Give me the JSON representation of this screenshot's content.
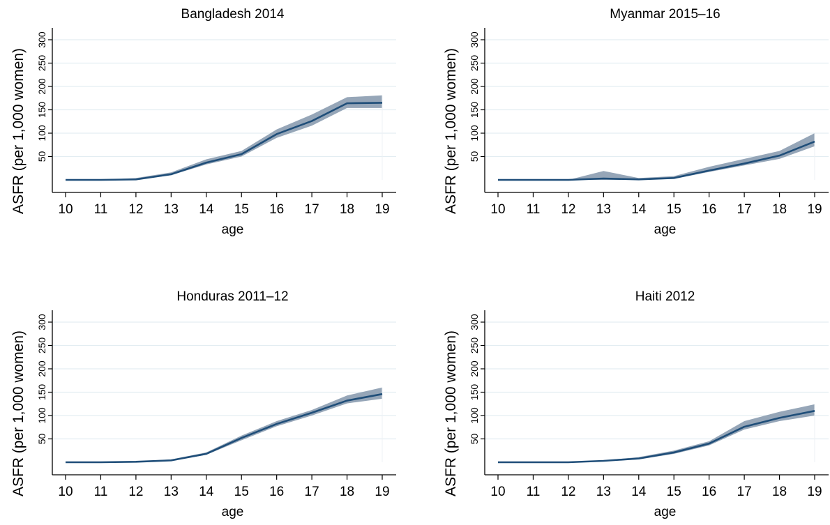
{
  "colors": {
    "line": "#1f4e79",
    "band": "#8497ac",
    "grid": "#e3edf2",
    "axis": "#000000"
  },
  "chart_data": [
    {
      "type": "line",
      "title": "Bangladesh 2014",
      "xlabel": "age",
      "ylabel": "ASFR (per 1,000 women)",
      "ylim": [
        0,
        330
      ],
      "yticks": [
        50,
        100,
        150,
        200,
        250,
        300
      ],
      "x": [
        10,
        11,
        12,
        13,
        14,
        15,
        16,
        17,
        18,
        19
      ],
      "series": [
        {
          "values": [
            0,
            0,
            1,
            12,
            37,
            55,
            98,
            126,
            164,
            165
          ]
        }
      ],
      "band_lower": [
        0,
        0,
        0,
        10,
        33,
        50,
        90,
        116,
        154,
        154
      ],
      "band_upper": [
        0,
        0,
        4,
        16,
        44,
        62,
        108,
        140,
        177,
        181
      ],
      "grid": true
    },
    {
      "type": "line",
      "title": "Myanmar 2015–16",
      "xlabel": "age",
      "ylabel": "ASFR (per 1,000 women)",
      "ylim": [
        0,
        330
      ],
      "yticks": [
        50,
        100,
        150,
        200,
        250,
        300
      ],
      "x": [
        10,
        11,
        12,
        13,
        14,
        15,
        16,
        17,
        18,
        19
      ],
      "series": [
        {
          "values": [
            0,
            0,
            0,
            3,
            1,
            4,
            20,
            35,
            52,
            82
          ]
        }
      ],
      "band_lower": [
        0,
        0,
        0,
        0,
        0,
        2,
        17,
        31,
        45,
        72
      ],
      "band_upper": [
        0,
        0,
        0,
        19,
        4,
        8,
        28,
        45,
        62,
        100
      ],
      "grid": true
    },
    {
      "type": "line",
      "title": "Honduras 2011–12",
      "xlabel": "age",
      "ylabel": "ASFR (per 1,000 women)",
      "ylim": [
        0,
        330
      ],
      "yticks": [
        50,
        100,
        150,
        200,
        250,
        300
      ],
      "x": [
        10,
        11,
        12,
        13,
        14,
        15,
        16,
        17,
        18,
        19
      ],
      "series": [
        {
          "values": [
            0,
            0,
            1,
            4,
            18,
            52,
            82,
            106,
            132,
            146
          ]
        }
      ],
      "band_lower": [
        0,
        0,
        0,
        3,
        16,
        47,
        77,
        100,
        126,
        136
      ],
      "band_upper": [
        0,
        0,
        2,
        6,
        21,
        57,
        88,
        112,
        143,
        160
      ],
      "grid": true
    },
    {
      "type": "line",
      "title": "Haiti 2012",
      "xlabel": "age",
      "ylabel": "ASFR (per 1,000 women)",
      "ylim": [
        0,
        330
      ],
      "yticks": [
        50,
        100,
        150,
        200,
        250,
        300
      ],
      "x": [
        10,
        11,
        12,
        13,
        14,
        15,
        16,
        17,
        18,
        19
      ],
      "series": [
        {
          "values": [
            0,
            0,
            0,
            3,
            8,
            21,
            40,
            76,
            95,
            110
          ]
        }
      ],
      "band_lower": [
        0,
        0,
        0,
        2,
        6,
        18,
        36,
        70,
        88,
        100
      ],
      "band_upper": [
        0,
        0,
        1,
        4,
        11,
        25,
        45,
        88,
        108,
        124
      ],
      "grid": true
    }
  ]
}
